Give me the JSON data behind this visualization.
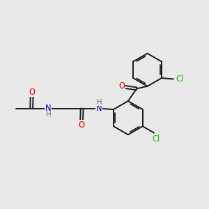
{
  "background_color": "#e9e9e9",
  "bond_color": "#1a1a1a",
  "atom_colors": {
    "O": "#dd0000",
    "N": "#0000bb",
    "Cl": "#22bb00",
    "H": "#666666"
  },
  "figsize": [
    3.0,
    3.0
  ],
  "dpi": 100,
  "lw": 1.4,
  "fs": 7.8
}
